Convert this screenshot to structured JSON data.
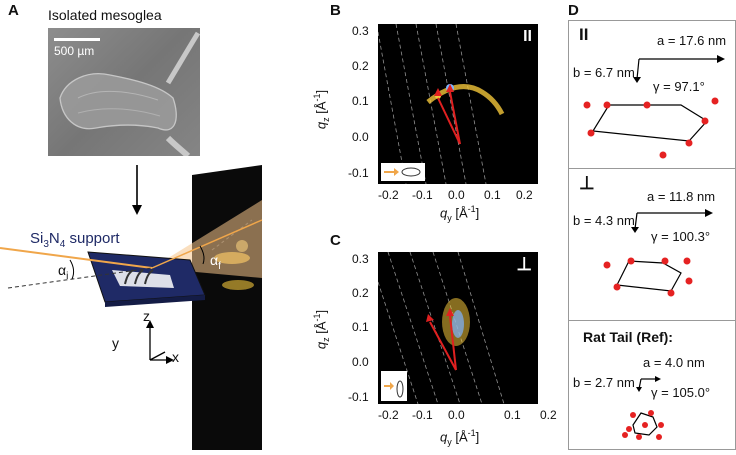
{
  "panels": {
    "a": {
      "label": "A",
      "title": "Isolated mesoglea",
      "scalebar": "500 µm",
      "support_label": "Si",
      "support_sub1": "3",
      "support_mid": "N",
      "support_sub2": "4",
      "support_tail": " support",
      "alpha_i": "α",
      "alpha_i_sub": "i",
      "alpha_f": "α",
      "alpha_f_sub": "f",
      "axis_z": "z",
      "axis_y": "y",
      "axis_x": "x"
    },
    "b": {
      "label": "B",
      "orientation_symbol": "II",
      "x_ticks": [
        "-0.2",
        "-0.1",
        "0.0",
        "0.1",
        "0.2"
      ],
      "y_ticks": [
        "0.3",
        "0.2",
        "0.1",
        "0.0",
        "-0.1"
      ],
      "xlabel": "q",
      "xlabel_sub": "y",
      "xlabel_unit": " [Å",
      "xlabel_sup": "-1",
      "xlabel_end": "]",
      "ylabel": "q",
      "ylabel_sub": "z",
      "ylabel_unit": " [Å",
      "ylabel_sup": "-1",
      "ylabel_end": "]"
    },
    "c": {
      "label": "C",
      "orientation_symbol": "⊥",
      "x_ticks": [
        "-0.2",
        "-0.1",
        "0.0",
        "0.1",
        "0.2"
      ],
      "y_ticks": [
        "0.3",
        "0.2",
        "0.1",
        "0.0",
        "-0.1"
      ],
      "xlabel": "q",
      "xlabel_sub": "y",
      "xlabel_unit": " [Å",
      "xlabel_sup": "-1",
      "xlabel_end": "]",
      "ylabel": "q",
      "ylabel_sub": "z",
      "ylabel_unit": " [Å",
      "ylabel_sup": "-1",
      "ylabel_end": "]"
    },
    "d": {
      "label": "D",
      "boxes": [
        {
          "title": "II",
          "a": "a = 17.6 nm",
          "b": "b = 6.7 nm",
          "gamma": "γ = 97.1°"
        },
        {
          "title": "⊥",
          "a": "a = 11.8 nm",
          "b": "b = 4.3 nm",
          "gamma": "γ = 100.3°"
        },
        {
          "title": "Rat Tail (Ref):",
          "a": "a = 4.0 nm",
          "b": "b = 2.7 nm",
          "gamma": "γ = 105.0°"
        }
      ]
    }
  },
  "colors": {
    "lattice_point": "#e52222",
    "arrow": "#e02020",
    "scatter": "#f2c53a",
    "beam": "#f0a64a",
    "substrate": "#1f2a66"
  }
}
